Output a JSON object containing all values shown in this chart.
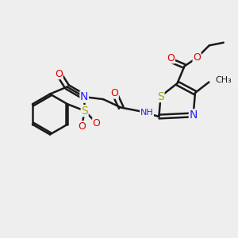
{
  "bg_color": "#eeeeee",
  "bond_color": "#1a1a1a",
  "bond_width": 1.8,
  "atom_colors": {
    "N": "#2222ff",
    "O": "#dd0000",
    "S": "#aaaa00",
    "C": "#1a1a1a"
  },
  "scale": 1.0
}
